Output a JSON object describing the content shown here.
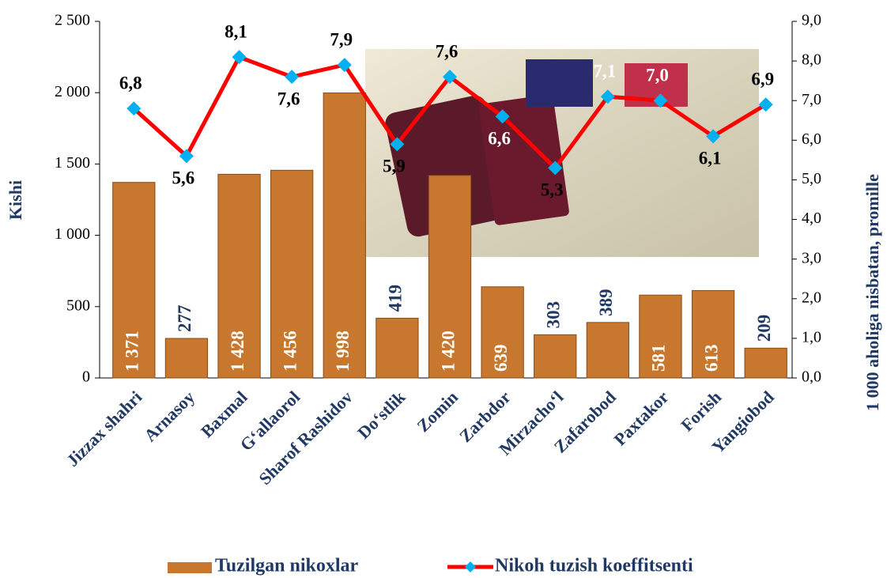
{
  "chart_data": {
    "type": "bar",
    "categories": [
      "Jizzax shahri",
      "Arnasoy",
      "Baxmal",
      "G‘allaorol",
      "Sharof Rashidov",
      "Do‘stlik",
      "Zomin",
      "Zarbdor",
      "Mirzacho‘l",
      "Zafarobod",
      "Paxtakor",
      "Forish",
      "Yangiobod"
    ],
    "series": [
      {
        "name": "Tuzilgan nikoxlar",
        "type": "bar",
        "color": "#c8782e",
        "values": [
          1371,
          277,
          1428,
          1456,
          1998,
          419,
          1420,
          639,
          303,
          389,
          581,
          613,
          209
        ],
        "value_labels": [
          "1 371",
          "277",
          "1 428",
          "1 456",
          "1 998",
          "419",
          "1 420",
          "639",
          "303",
          "389",
          "581",
          "613",
          "209"
        ]
      },
      {
        "name": "Nikoh tuzish koeffitsenti",
        "type": "line",
        "axis": "y2",
        "color": "#ff0000",
        "marker_color": "#00b0f0",
        "values": [
          6.8,
          5.6,
          8.1,
          7.6,
          7.9,
          5.9,
          7.6,
          6.6,
          5.3,
          7.1,
          7.0,
          6.1,
          6.9
        ],
        "value_labels": [
          "6,8",
          "5,6",
          "8,1",
          "7,6",
          "7,9",
          "5,9",
          "7,6",
          "6,6",
          "5,3",
          "7,1",
          "7,0",
          "6,1",
          "6,9"
        ]
      }
    ],
    "y_label": "Kishi",
    "y2_label": "1 000 aholiga nisbatan, promille",
    "ylim": [
      0,
      2500
    ],
    "yticks": [
      0,
      500,
      {
        "value": 1000,
        "label": "1 000"
      },
      {
        "value": 1500,
        "label": "1 500"
      },
      {
        "value": 2000,
        "label": "2 000"
      },
      {
        "value": 2500,
        "label": "2 500"
      }
    ],
    "y2lim": [
      0,
      9
    ],
    "y2ticks": [
      {
        "value": 0,
        "label": "0,0"
      },
      {
        "value": 1,
        "label": "1,0"
      },
      {
        "value": 2,
        "label": "2,0"
      },
      {
        "value": 3,
        "label": "3,0"
      },
      {
        "value": 4,
        "label": "4,0"
      },
      {
        "value": 5,
        "label": "5,0"
      },
      {
        "value": 6,
        "label": "6,0"
      },
      {
        "value": 7,
        "label": "7,0"
      },
      {
        "value": 8,
        "label": "8,0"
      },
      {
        "value": 9,
        "label": "9,0"
      }
    ],
    "legend": "bottom"
  }
}
